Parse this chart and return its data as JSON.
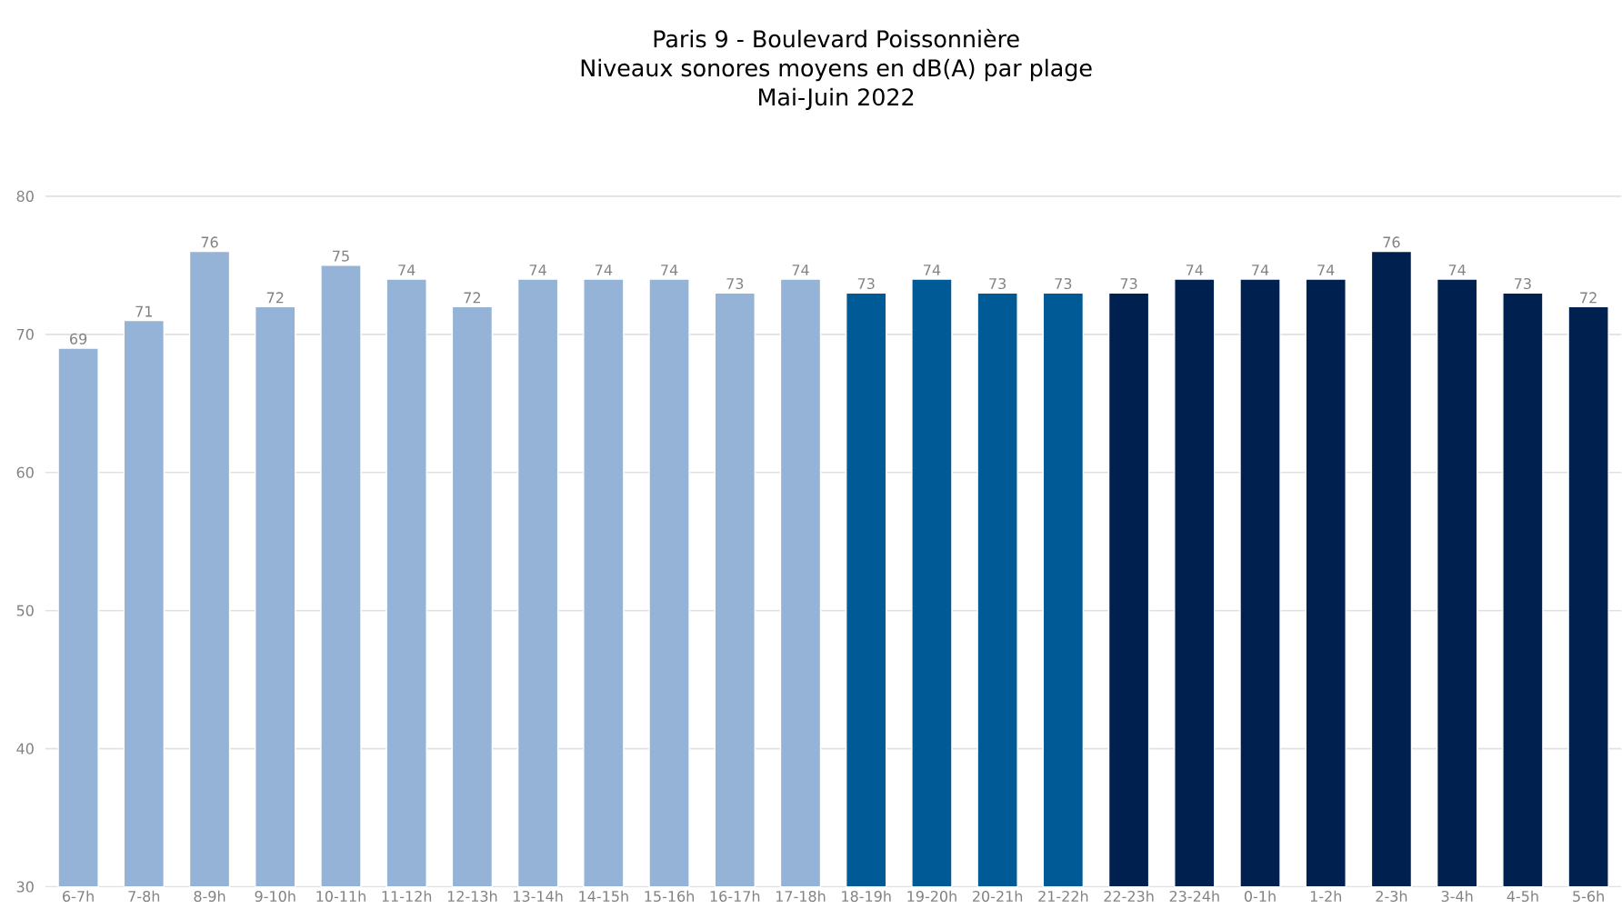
{
  "chart_data": {
    "type": "bar",
    "title": "Paris 9 - Boulevard Poissonnière",
    "subtitle": "Niveaux sonores moyens en dB(A) par plage",
    "annotations": [
      "Mai-Juin 2022"
    ],
    "categories": [
      "6-7h",
      "7-8h",
      "8-9h",
      "9-10h",
      "10-11h",
      "11-12h",
      "12-13h",
      "13-14h",
      "14-15h",
      "15-16h",
      "16-17h",
      "17-18h",
      "18-19h",
      "19-20h",
      "20-21h",
      "21-22h",
      "22-23h",
      "23-24h",
      "0-1h",
      "1-2h",
      "2-3h",
      "3-4h",
      "4-5h",
      "5-6h"
    ],
    "values": [
      69,
      71,
      76,
      72,
      75,
      74,
      72,
      74,
      74,
      74,
      73,
      74,
      73,
      74,
      73,
      73,
      73,
      74,
      74,
      74,
      76,
      74,
      73,
      72
    ],
    "colors": [
      "#95b3d7",
      "#95b3d7",
      "#95b3d7",
      "#95b3d7",
      "#95b3d7",
      "#95b3d7",
      "#95b3d7",
      "#95b3d7",
      "#95b3d7",
      "#95b3d7",
      "#95b3d7",
      "#95b3d7",
      "#005a96",
      "#005a96",
      "#005a96",
      "#005a96",
      "#002050",
      "#002050",
      "#002050",
      "#002050",
      "#002050",
      "#002050",
      "#002050",
      "#002050"
    ],
    "ylim": [
      30,
      80
    ],
    "yticks": [
      30,
      40,
      50,
      60,
      70,
      80
    ],
    "grid": "y",
    "data_labels": true
  }
}
